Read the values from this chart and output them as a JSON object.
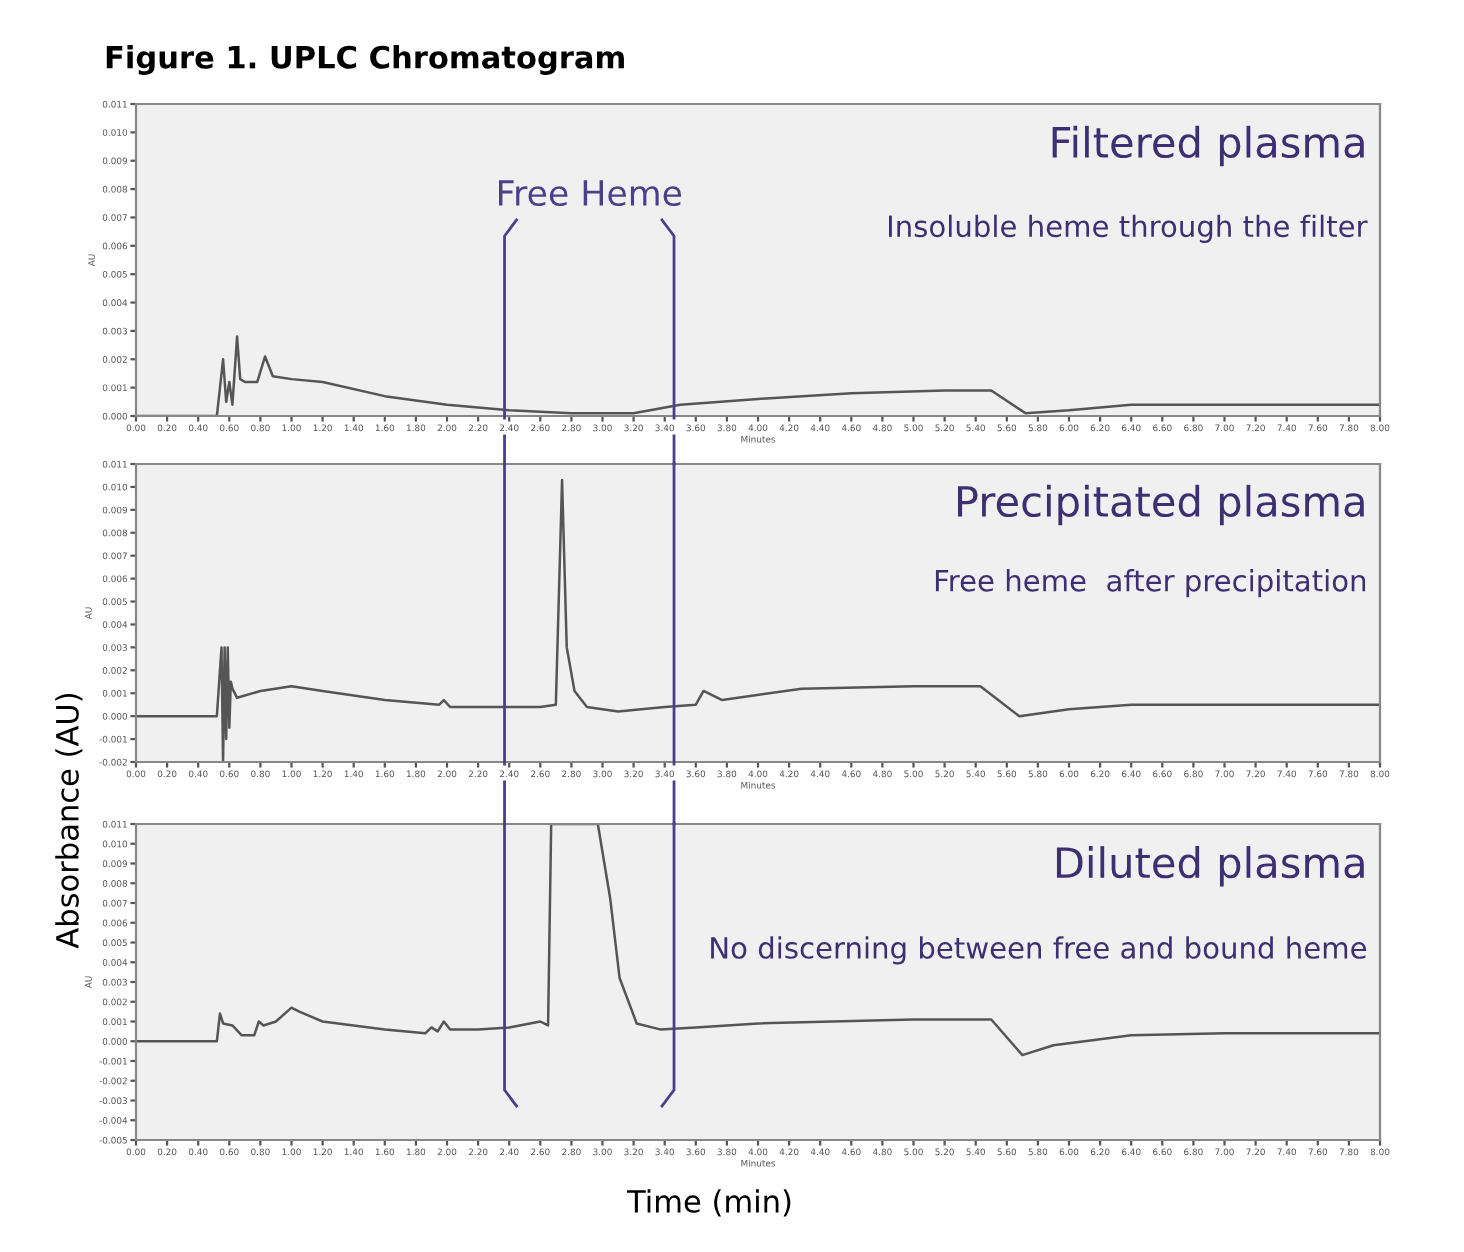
{
  "chart_data": [
    {
      "type": "line",
      "title": "Figure 1. UPLC Chromatogram",
      "subtitle": "Filtered plasma",
      "xlabel": "Minutes",
      "ylabel": "AU",
      "annotations": [
        "Insoluble heme through the filter"
      ],
      "ref_lines": [
        {
          "axis": "x",
          "value": 2.37,
          "label": "Free Heme",
          "color": "#4a3f8a"
        },
        {
          "axis": "x",
          "value": 3.46,
          "color": "#4a3f8a"
        }
      ],
      "x": [
        0,
        0.52,
        0.56,
        0.58,
        0.6,
        0.62,
        0.65,
        0.67,
        0.7,
        0.78,
        0.83,
        0.88,
        1.0,
        1.2,
        1.6,
        2.0,
        2.4,
        2.8,
        3.2,
        3.5,
        4.0,
        4.6,
        5.2,
        5.5,
        5.72,
        6.0,
        6.4,
        7.0,
        8.0
      ],
      "series": [
        {
          "color": "#555555",
          "values": [
            0.0,
            0.0,
            0.002,
            0.0005,
            0.0012,
            0.0004,
            0.0028,
            0.0013,
            0.0012,
            0.0012,
            0.0021,
            0.0014,
            0.0013,
            0.0012,
            0.0007,
            0.0004,
            0.0002,
            0.0001,
            0.0001,
            0.0004,
            0.0006,
            0.0008,
            0.0009,
            0.0009,
            0.0001,
            0.0002,
            0.0004,
            0.0004,
            0.0004
          ]
        }
      ],
      "xlim": [
        0,
        8
      ],
      "ylim": [
        0,
        0.011
      ],
      "xticks": [
        {
          "value": 0,
          "label": "0.00"
        },
        {
          "value": 0.2,
          "label": "0.20"
        },
        {
          "value": 0.4,
          "label": "0.40"
        },
        {
          "value": 0.6,
          "label": "0.60"
        },
        {
          "value": 0.8,
          "label": "0.80"
        },
        {
          "value": 1.0,
          "label": "1.00"
        },
        {
          "value": 1.2,
          "label": "1.20"
        },
        {
          "value": 1.4,
          "label": "1.40"
        },
        {
          "value": 1.6,
          "label": "1.60"
        },
        {
          "value": 1.8,
          "label": "1.80"
        },
        {
          "value": 2.0,
          "label": "2.00"
        },
        {
          "value": 2.2,
          "label": "2.20"
        },
        {
          "value": 2.4,
          "label": "2.40"
        },
        {
          "value": 2.6,
          "label": "2.60"
        },
        {
          "value": 2.8,
          "label": "2.80"
        },
        {
          "value": 3.0,
          "label": "3.00"
        },
        {
          "value": 3.2,
          "label": "3.20"
        },
        {
          "value": 3.4,
          "label": "3.40"
        },
        {
          "value": 3.6,
          "label": "3.60"
        },
        {
          "value": 3.8,
          "label": "3.80"
        },
        {
          "value": 4.0,
          "label": "4.00"
        },
        {
          "value": 4.2,
          "label": "4.20"
        },
        {
          "value": 4.4,
          "label": "4.40"
        },
        {
          "value": 4.6,
          "label": "4.60"
        },
        {
          "value": 4.8,
          "label": "4.80"
        },
        {
          "value": 5.0,
          "label": "5.00"
        },
        {
          "value": 5.2,
          "label": "5.20"
        },
        {
          "value": 5.4,
          "label": "5.40"
        },
        {
          "value": 5.6,
          "label": "5.60"
        },
        {
          "value": 5.8,
          "label": "5.80"
        },
        {
          "value": 6.0,
          "label": "6.00"
        },
        {
          "value": 6.2,
          "label": "6.20"
        },
        {
          "value": 6.4,
          "label": "6.40"
        },
        {
          "value": 6.6,
          "label": "6.60"
        },
        {
          "value": 6.8,
          "label": "6.80"
        },
        {
          "value": 7.0,
          "label": "7.00"
        },
        {
          "value": 7.2,
          "label": "7.20"
        },
        {
          "value": 7.4,
          "label": "7.40"
        },
        {
          "value": 7.6,
          "label": "7.60"
        },
        {
          "value": 7.8,
          "label": "7.80"
        },
        {
          "value": 8.0,
          "label": "8.00"
        }
      ],
      "yticks": [
        {
          "value": 0,
          "label": "0.000"
        },
        {
          "value": 0.001,
          "label": "0.001"
        },
        {
          "value": 0.002,
          "label": "0.002"
        },
        {
          "value": 0.003,
          "label": "0.003"
        },
        {
          "value": 0.004,
          "label": "0.004"
        },
        {
          "value": 0.005,
          "label": "0.005"
        },
        {
          "value": 0.006,
          "label": "0.006"
        },
        {
          "value": 0.007,
          "label": "0.007"
        },
        {
          "value": 0.008,
          "label": "0.008"
        },
        {
          "value": 0.009,
          "label": "0.009"
        },
        {
          "value": 0.01,
          "label": "0.010"
        },
        {
          "value": 0.011,
          "label": "0.011"
        }
      ],
      "legend": false,
      "grid": false
    },
    {
      "type": "line",
      "subtitle": "Precipitated plasma",
      "xlabel": "Minutes",
      "ylabel": "AU",
      "ref_lines": [
        {
          "axis": "x",
          "value": 2.37,
          "color": "#4a3f8a"
        },
        {
          "axis": "x",
          "value": 3.46,
          "color": "#4a3f8a"
        }
      ],
      "annotations": [
        "Free heme  after precipitation",
        "Absorbance (AU)"
      ],
      "x": [
        0,
        0.52,
        0.55,
        0.56,
        0.57,
        0.58,
        0.59,
        0.6,
        0.61,
        0.62,
        0.65,
        0.8,
        1.0,
        1.2,
        1.6,
        1.95,
        1.98,
        2.02,
        2.4,
        2.6,
        2.7,
        2.74,
        2.77,
        2.82,
        2.9,
        3.1,
        3.4,
        3.6,
        3.65,
        3.77,
        4.28,
        5.0,
        5.43,
        5.68,
        6.0,
        6.4,
        7.0,
        8.0
      ],
      "series": [
        {
          "color": "#555555",
          "values": [
            0.0,
            0.0,
            0.003,
            -0.002,
            0.003,
            -0.001,
            0.003,
            -0.0005,
            0.0015,
            0.0012,
            0.0008,
            0.0011,
            0.0013,
            0.0011,
            0.0007,
            0.0005,
            0.0007,
            0.0004,
            0.0004,
            0.0004,
            0.0005,
            0.0103,
            0.003,
            0.0011,
            0.0004,
            0.0002,
            0.0004,
            0.0005,
            0.0011,
            0.0007,
            0.0012,
            0.0013,
            0.0013,
            0.0,
            0.0003,
            0.0005,
            0.0005,
            0.0005
          ]
        }
      ],
      "xlim": [
        0,
        8
      ],
      "ylim": [
        -0.002,
        0.011
      ],
      "xticks": [
        {
          "value": 0,
          "label": "0.00"
        },
        {
          "value": 0.2,
          "label": "0.20"
        },
        {
          "value": 0.4,
          "label": "0.40"
        },
        {
          "value": 0.6,
          "label": "0.60"
        },
        {
          "value": 0.8,
          "label": "0.80"
        },
        {
          "value": 1.0,
          "label": "1.00"
        },
        {
          "value": 1.2,
          "label": "1.20"
        },
        {
          "value": 1.4,
          "label": "1.40"
        },
        {
          "value": 1.6,
          "label": "1.60"
        },
        {
          "value": 1.8,
          "label": "1.80"
        },
        {
          "value": 2.0,
          "label": "2.00"
        },
        {
          "value": 2.2,
          "label": "2.20"
        },
        {
          "value": 2.4,
          "label": "2.40"
        },
        {
          "value": 2.6,
          "label": "2.60"
        },
        {
          "value": 2.8,
          "label": "2.80"
        },
        {
          "value": 3.0,
          "label": "3.00"
        },
        {
          "value": 3.2,
          "label": "3.20"
        },
        {
          "value": 3.4,
          "label": "3.40"
        },
        {
          "value": 3.6,
          "label": "3.60"
        },
        {
          "value": 3.8,
          "label": "3.80"
        },
        {
          "value": 4.0,
          "label": "4.00"
        },
        {
          "value": 4.2,
          "label": "4.20"
        },
        {
          "value": 4.4,
          "label": "4.40"
        },
        {
          "value": 4.6,
          "label": "4.60"
        },
        {
          "value": 4.8,
          "label": "4.80"
        },
        {
          "value": 5.0,
          "label": "5.00"
        },
        {
          "value": 5.2,
          "label": "5.20"
        },
        {
          "value": 5.4,
          "label": "5.40"
        },
        {
          "value": 5.6,
          "label": "5.60"
        },
        {
          "value": 5.8,
          "label": "5.80"
        },
        {
          "value": 6.0,
          "label": "6.00"
        },
        {
          "value": 6.2,
          "label": "6.20"
        },
        {
          "value": 6.4,
          "label": "6.40"
        },
        {
          "value": 6.6,
          "label": "6.60"
        },
        {
          "value": 6.8,
          "label": "6.80"
        },
        {
          "value": 7.0,
          "label": "7.00"
        },
        {
          "value": 7.2,
          "label": "7.20"
        },
        {
          "value": 7.4,
          "label": "7.40"
        },
        {
          "value": 7.6,
          "label": "7.60"
        },
        {
          "value": 7.8,
          "label": "7.80"
        },
        {
          "value": 8.0,
          "label": "8.00"
        }
      ],
      "yticks": [
        {
          "value": -0.002,
          "label": "-0.002"
        },
        {
          "value": -0.001,
          "label": "-0.001"
        },
        {
          "value": 0,
          "label": "0.000"
        },
        {
          "value": 0.001,
          "label": "0.001"
        },
        {
          "value": 0.002,
          "label": "0.002"
        },
        {
          "value": 0.003,
          "label": "0.003"
        },
        {
          "value": 0.004,
          "label": "0.004"
        },
        {
          "value": 0.005,
          "label": "0.005"
        },
        {
          "value": 0.006,
          "label": "0.006"
        },
        {
          "value": 0.007,
          "label": "0.007"
        },
        {
          "value": 0.008,
          "label": "0.008"
        },
        {
          "value": 0.009,
          "label": "0.009"
        },
        {
          "value": 0.01,
          "label": "0.010"
        },
        {
          "value": 0.011,
          "label": "0.011"
        }
      ],
      "legend": false,
      "grid": false
    },
    {
      "type": "line",
      "subtitle": "Diluted plasma",
      "xlabel": "Minutes",
      "ylabel": "AU",
      "ref_lines": [
        {
          "axis": "x",
          "value": 2.37,
          "color": "#4a3f8a"
        },
        {
          "axis": "x",
          "value": 3.46,
          "color": "#4a3f8a"
        }
      ],
      "annotations": [
        "No discerning between free and bound heme",
        "Time (min)"
      ],
      "x": [
        0,
        0.52,
        0.54,
        0.56,
        0.62,
        0.68,
        0.76,
        0.79,
        0.82,
        0.9,
        1.0,
        1.05,
        1.2,
        1.6,
        1.86,
        1.9,
        1.94,
        1.98,
        2.02,
        2.2,
        2.4,
        2.6,
        2.65,
        2.67,
        2.97,
        3.05,
        3.11,
        3.22,
        3.37,
        3.6,
        4.0,
        5.0,
        5.5,
        5.7,
        5.9,
        6.4,
        7.0,
        8.0
      ],
      "series": [
        {
          "color": "#555555",
          "values": [
            0.0,
            0.0,
            0.0014,
            0.0009,
            0.0008,
            0.0003,
            0.0003,
            0.001,
            0.0008,
            0.001,
            0.0017,
            0.0015,
            0.001,
            0.0006,
            0.0004,
            0.0007,
            0.0005,
            0.001,
            0.0006,
            0.0006,
            0.0007,
            0.001,
            0.0008,
            0.011,
            0.011,
            0.0072,
            0.0032,
            0.0009,
            0.0006,
            0.0007,
            0.0009,
            0.0011,
            0.0011,
            -0.0007,
            -0.0002,
            0.0003,
            0.0004,
            0.0004
          ]
        }
      ],
      "xlim": [
        0,
        8
      ],
      "ylim": [
        -0.005,
        0.011
      ],
      "xticks": [
        {
          "value": 0,
          "label": "0.00"
        },
        {
          "value": 0.2,
          "label": "0.20"
        },
        {
          "value": 0.4,
          "label": "0.40"
        },
        {
          "value": 0.6,
          "label": "0.60"
        },
        {
          "value": 0.8,
          "label": "0.80"
        },
        {
          "value": 1.0,
          "label": "1.00"
        },
        {
          "value": 1.2,
          "label": "1.20"
        },
        {
          "value": 1.4,
          "label": "1.40"
        },
        {
          "value": 1.6,
          "label": "1.60"
        },
        {
          "value": 1.8,
          "label": "1.80"
        },
        {
          "value": 2.0,
          "label": "2.00"
        },
        {
          "value": 2.2,
          "label": "2.20"
        },
        {
          "value": 2.4,
          "label": "2.40"
        },
        {
          "value": 2.6,
          "label": "2.60"
        },
        {
          "value": 2.8,
          "label": "2.80"
        },
        {
          "value": 3.0,
          "label": "3.00"
        },
        {
          "value": 3.2,
          "label": "3.20"
        },
        {
          "value": 3.4,
          "label": "3.40"
        },
        {
          "value": 3.6,
          "label": "3.60"
        },
        {
          "value": 3.8,
          "label": "3.80"
        },
        {
          "value": 4.0,
          "label": "4.00"
        },
        {
          "value": 4.2,
          "label": "4.20"
        },
        {
          "value": 4.4,
          "label": "4.40"
        },
        {
          "value": 4.6,
          "label": "4.60"
        },
        {
          "value": 4.8,
          "label": "4.80"
        },
        {
          "value": 5.0,
          "label": "5.00"
        },
        {
          "value": 5.2,
          "label": "5.20"
        },
        {
          "value": 5.4,
          "label": "5.40"
        },
        {
          "value": 5.6,
          "label": "5.60"
        },
        {
          "value": 5.8,
          "label": "5.80"
        },
        {
          "value": 6.0,
          "label": "6.00"
        },
        {
          "value": 6.2,
          "label": "6.20"
        },
        {
          "value": 6.4,
          "label": "6.40"
        },
        {
          "value": 6.6,
          "label": "6.60"
        },
        {
          "value": 6.8,
          "label": "6.80"
        },
        {
          "value": 7.0,
          "label": "7.00"
        },
        {
          "value": 7.2,
          "label": "7.20"
        },
        {
          "value": 7.4,
          "label": "7.40"
        },
        {
          "value": 7.6,
          "label": "7.60"
        },
        {
          "value": 7.8,
          "label": "7.80"
        },
        {
          "value": 8.0,
          "label": "8.00"
        }
      ],
      "yticks": [
        {
          "value": -0.005,
          "label": "-0.005"
        },
        {
          "value": -0.004,
          "label": "-0.004"
        },
        {
          "value": -0.003,
          "label": "-0.003"
        },
        {
          "value": -0.002,
          "label": "-0.002"
        },
        {
          "value": -0.001,
          "label": "-0.001"
        },
        {
          "value": 0,
          "label": "0.000"
        },
        {
          "value": 0.001,
          "label": "0.001"
        },
        {
          "value": 0.002,
          "label": "0.002"
        },
        {
          "value": 0.003,
          "label": "0.003"
        },
        {
          "value": 0.004,
          "label": "0.004"
        },
        {
          "value": 0.005,
          "label": "0.005"
        },
        {
          "value": 0.006,
          "label": "0.006"
        },
        {
          "value": 0.007,
          "label": "0.007"
        },
        {
          "value": 0.008,
          "label": "0.008"
        },
        {
          "value": 0.009,
          "label": "0.009"
        },
        {
          "value": 0.01,
          "label": "0.010"
        },
        {
          "value": 0.011,
          "label": "0.011"
        }
      ],
      "legend": false,
      "grid": false
    }
  ]
}
